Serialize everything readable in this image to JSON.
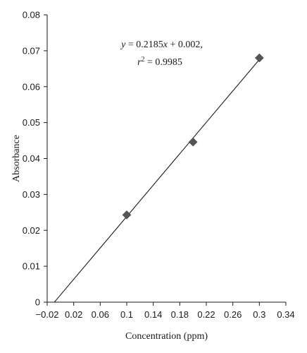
{
  "chart_data": {
    "type": "scatter",
    "xlabel": "Concentration (ppm)",
    "ylabel": "Absorbance",
    "xlim": [
      -0.02,
      0.34
    ],
    "ylim": [
      0,
      0.08
    ],
    "x_ticks": [
      -0.02,
      0.02,
      0.06,
      0.1,
      0.14,
      0.18,
      0.22,
      0.26,
      0.3,
      0.34
    ],
    "x_tick_labels": [
      "−0.02",
      "0.02",
      "0.06",
      "0.1",
      "0.14",
      "0.18",
      "0.22",
      "0.26",
      "0.3",
      "0.34"
    ],
    "y_ticks": [
      0,
      0.01,
      0.02,
      0.03,
      0.04,
      0.05,
      0.06,
      0.07,
      0.08
    ],
    "y_tick_labels": [
      "0",
      "0.01",
      "0.02",
      "0.03",
      "0.04",
      "0.05",
      "0.06",
      "0.07",
      "0.08"
    ],
    "series": [
      {
        "x": [
          0.1,
          0.2,
          0.3
        ],
        "y": [
          0.0243,
          0.0446,
          0.068
        ],
        "marker": "diamond",
        "color": "#555555"
      }
    ],
    "fit_line": {
      "slope": 0.2185,
      "intercept": 0.002,
      "x_range": [
        -0.009,
        0.3
      ]
    },
    "annotation": {
      "line1": {
        "prefix": "y",
        "rest": " = 0.2185",
        "var": "x",
        "suffix": " + 0.002,"
      },
      "line2": {
        "prefix": "r",
        "sup": "2",
        "rest": " = 0.9985"
      }
    },
    "grid": false,
    "legend": "none"
  }
}
